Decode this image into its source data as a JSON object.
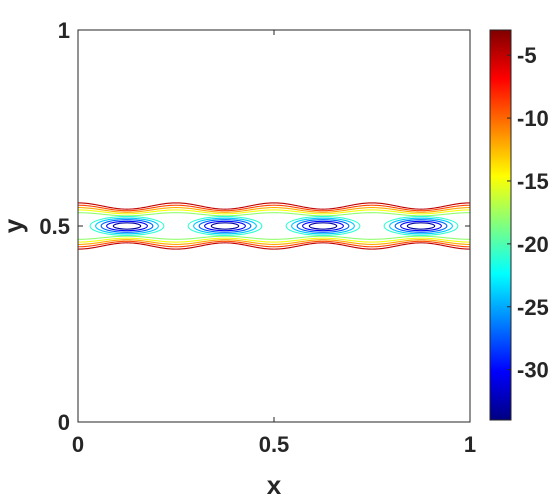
{
  "chart_data": {
    "type": "contour",
    "xlabel": "x",
    "ylabel": "y",
    "xlim": [
      0,
      1
    ],
    "ylim": [
      0,
      1
    ],
    "x_ticks": [
      {
        "value": 0,
        "label": "0"
      },
      {
        "value": 0.5,
        "label": "0.5"
      },
      {
        "value": 1,
        "label": "1"
      }
    ],
    "y_ticks": [
      {
        "value": 0,
        "label": "0"
      },
      {
        "value": 0.5,
        "label": "0.5"
      },
      {
        "value": 1,
        "label": "1"
      }
    ],
    "grid": false,
    "colormap": "jet",
    "colorbar": {
      "range": [
        -34,
        -3
      ],
      "ticks": [
        {
          "value": -5,
          "label": "-5"
        },
        {
          "value": -10,
          "label": "-10"
        },
        {
          "value": -15,
          "label": "-15"
        },
        {
          "value": -20,
          "label": "-20"
        },
        {
          "value": -25,
          "label": "-25"
        },
        {
          "value": -30,
          "label": "-30"
        }
      ]
    },
    "contour_levels": [
      -32,
      -30,
      -28,
      -26,
      -24,
      -22,
      -20,
      -18,
      -16,
      -14,
      -12,
      -10,
      -8,
      -6,
      -4
    ],
    "vortex_centers": [
      {
        "x": 0.125,
        "y": 0.5
      },
      {
        "x": 0.375,
        "y": 0.5
      },
      {
        "x": 0.625,
        "y": 0.5
      },
      {
        "x": 0.875,
        "y": 0.5
      }
    ],
    "open_contours": [
      {
        "level": -18,
        "y_mean": 0.5,
        "y_half_width": 0.03,
        "wave_amplitude": 0.004
      },
      {
        "level": -15,
        "y_mean": 0.5,
        "y_half_width": 0.036,
        "wave_amplitude": 0.005
      },
      {
        "level": -12,
        "y_mean": 0.5,
        "y_half_width": 0.041,
        "wave_amplitude": 0.006
      },
      {
        "level": -9,
        "y_mean": 0.5,
        "y_half_width": 0.046,
        "wave_amplitude": 0.007
      },
      {
        "level": -5,
        "y_mean": 0.5,
        "y_half_width": 0.051,
        "wave_amplitude": 0.008
      }
    ],
    "closed_contours": [
      {
        "level": -33,
        "x_radius": 0.035,
        "y_radius": 0.008
      },
      {
        "level": -30,
        "x_radius": 0.052,
        "y_radius": 0.012
      },
      {
        "level": -27,
        "x_radius": 0.066,
        "y_radius": 0.016
      },
      {
        "level": -24,
        "x_radius": 0.08,
        "y_radius": 0.02
      },
      {
        "level": -21,
        "x_radius": 0.094,
        "y_radius": 0.024
      }
    ]
  }
}
